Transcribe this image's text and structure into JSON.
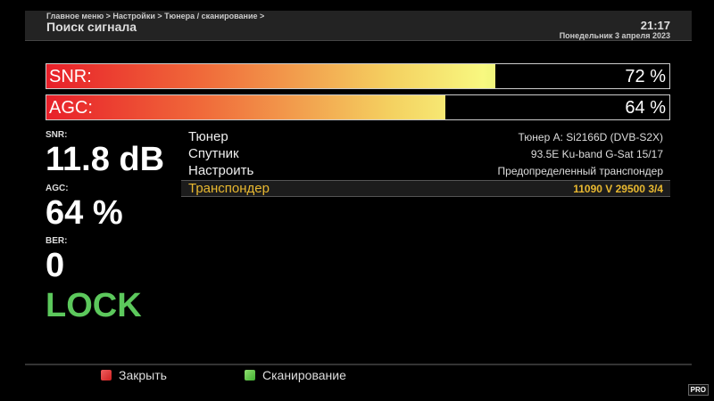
{
  "header": {
    "breadcrumb": "Главное меню > Настройки > Тюнера / сканирование >",
    "title": "Поиск сигнала",
    "time": "21:17",
    "date": "Понедельник  3 апреля 2023"
  },
  "bars": [
    {
      "label": "SNR:",
      "value_text": "72 %",
      "percent": 72
    },
    {
      "label": "AGC:",
      "value_text": "64 %",
      "percent": 64
    }
  ],
  "stats": {
    "snr_label": "SNR:",
    "snr_value": "11.8 dB",
    "agc_label": "AGC:",
    "agc_value": "64 %",
    "ber_label": "BER:",
    "ber_value": "0",
    "status": "LOCK",
    "status_color": "#5cc85c"
  },
  "settings": [
    {
      "key": "Тюнер",
      "value": "Тюнер A: Si2166D (DVB-S2X)"
    },
    {
      "key": "Спутник",
      "value": "93.5E Ku-band G-Sat 15/17"
    },
    {
      "key": "Настроить",
      "value": "Предопределенный транспондер"
    },
    {
      "key": "Транспондер",
      "value": "11090 V 29500 3/4",
      "selected": true
    }
  ],
  "footer": {
    "close_label": "Закрыть",
    "close_color": "#d02020",
    "scan_label": "Сканирование",
    "scan_color": "#40b030",
    "logo": "PRO"
  }
}
